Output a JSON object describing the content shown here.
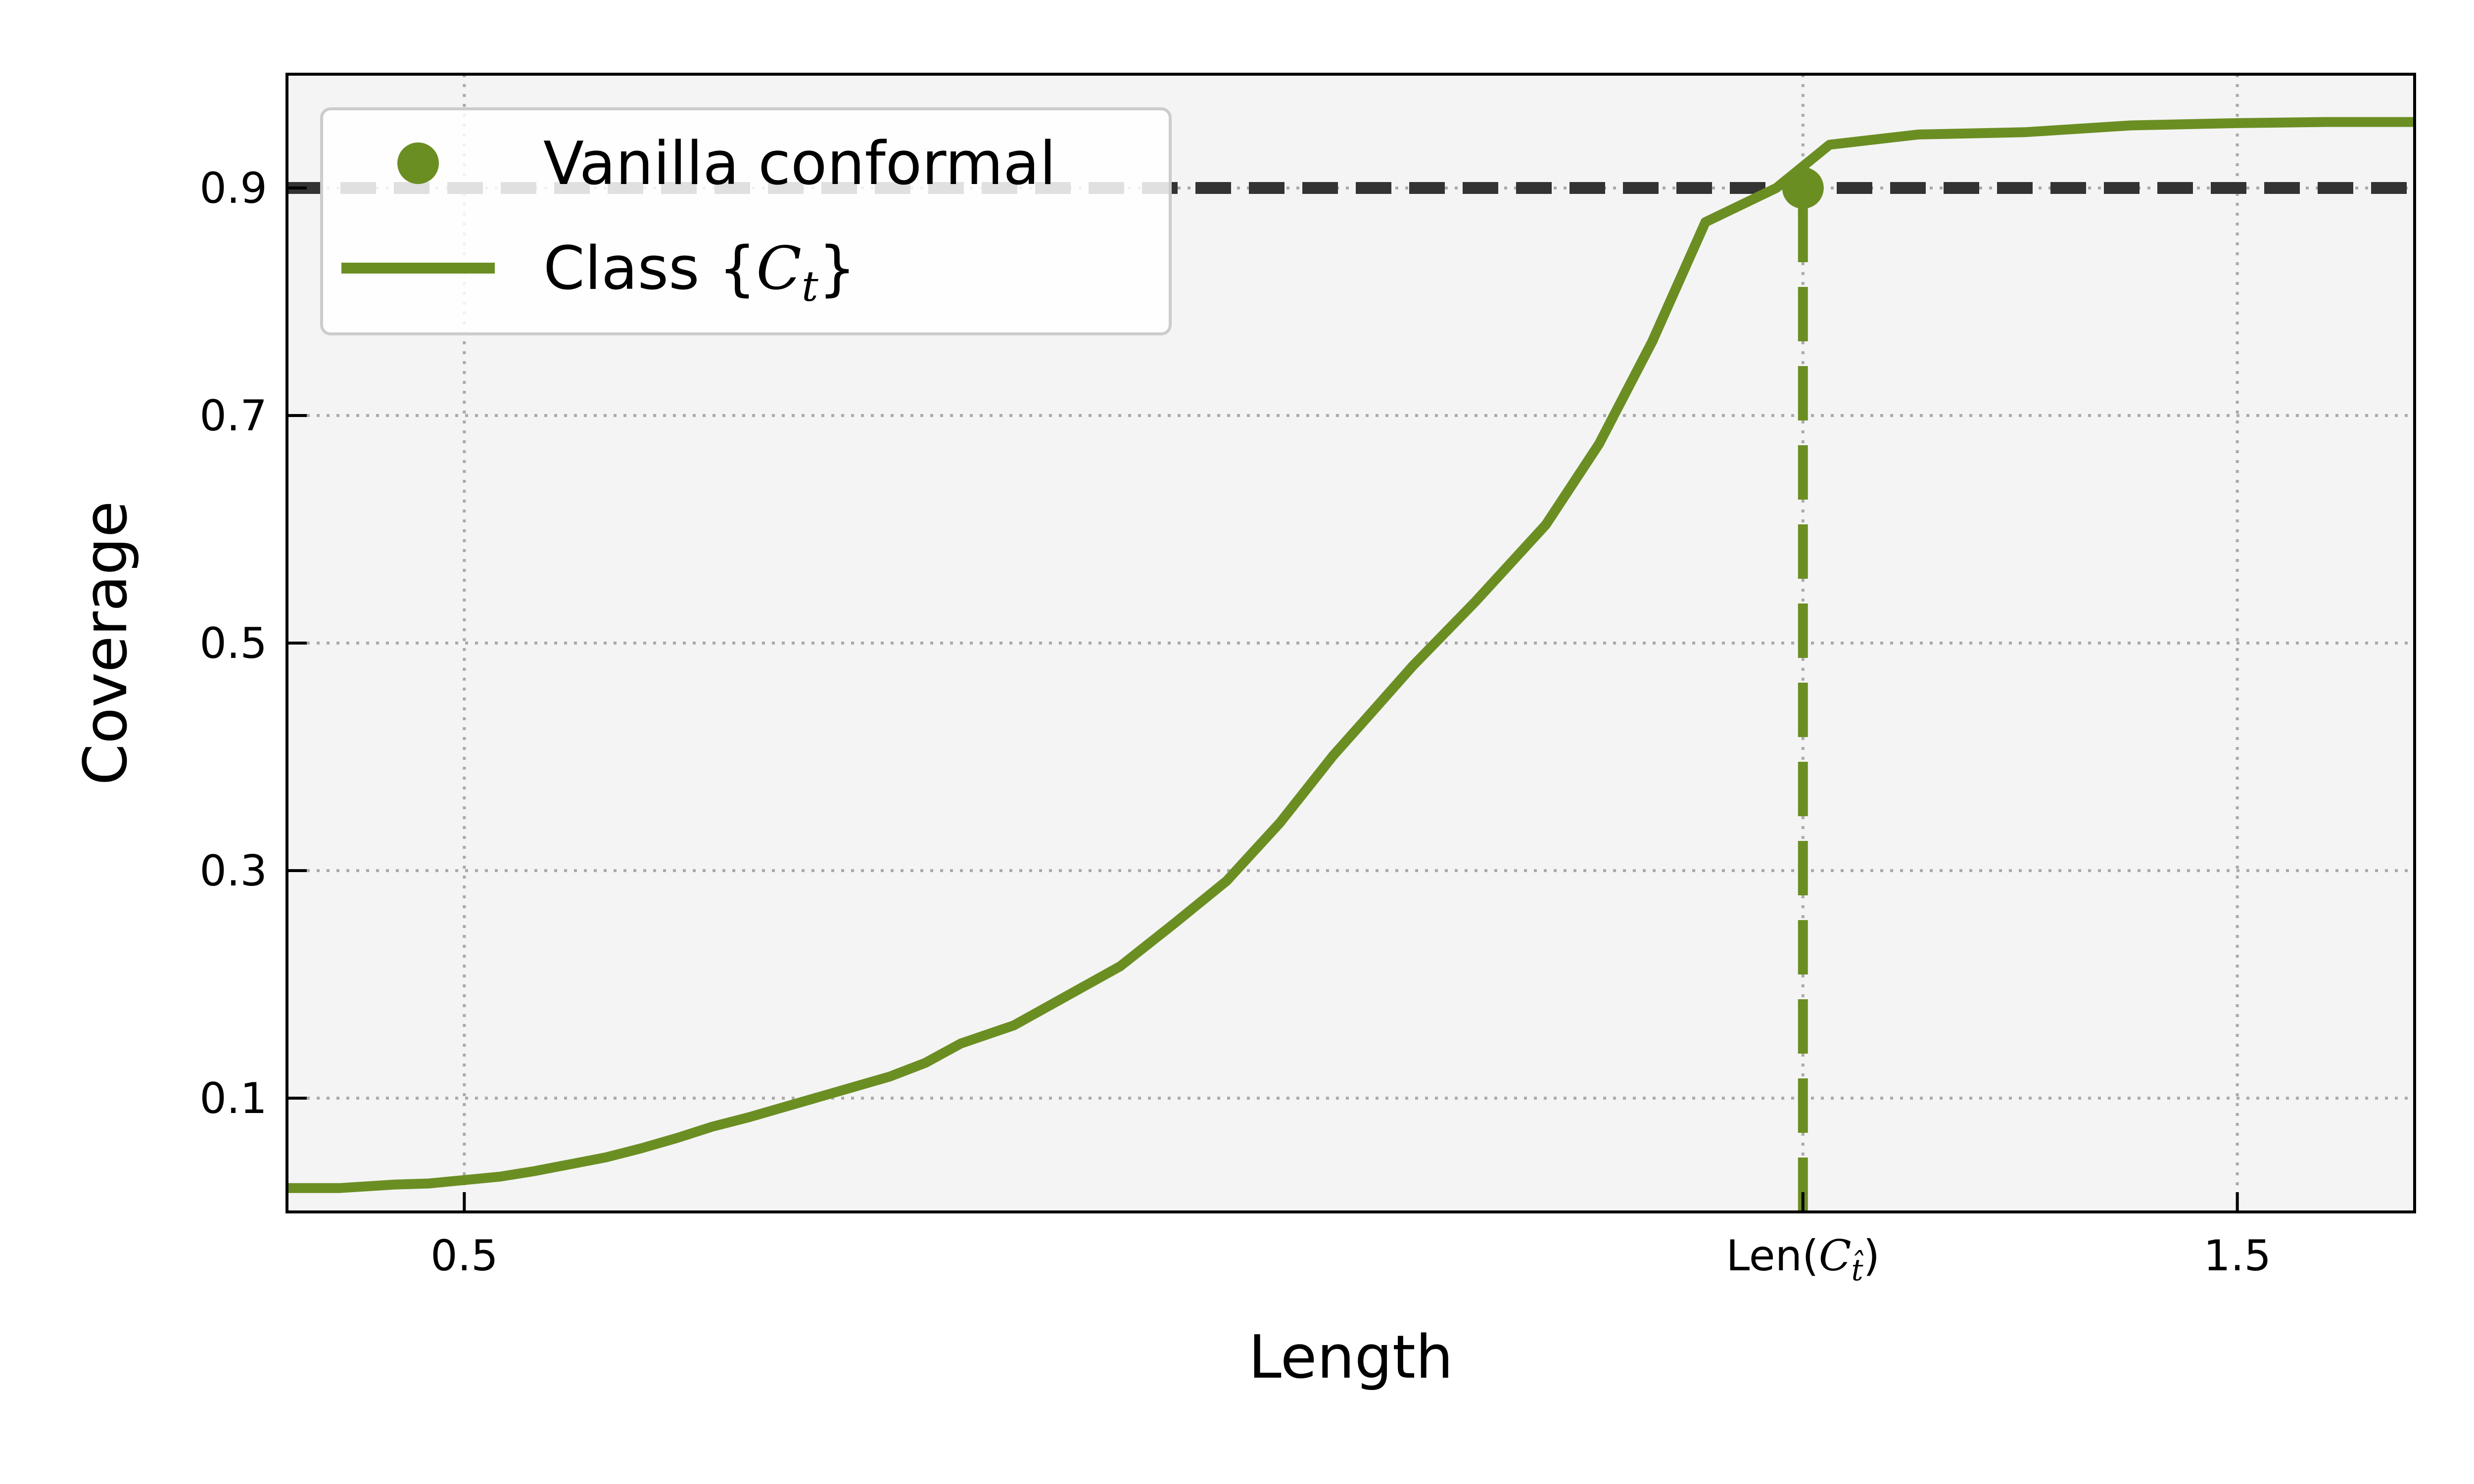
{
  "chart_data": {
    "type": "line",
    "title": "",
    "xlabel": "Length",
    "ylabel": "Coverage",
    "xlim": [
      0.4,
      1.6
    ],
    "ylim": [
      0.0,
      1.0
    ],
    "x_ticks": [
      {
        "value": 0.5,
        "label": "0.5"
      },
      {
        "value": 1.255,
        "label": "Len(C_t̂)",
        "label_prefix": "Len(",
        "label_math": "C",
        "label_sub": "t̂",
        "label_suffix": ")"
      },
      {
        "value": 1.5,
        "label": "1.5"
      }
    ],
    "y_ticks": [
      {
        "value": 0.1,
        "label": "0.1"
      },
      {
        "value": 0.3,
        "label": "0.3"
      },
      {
        "value": 0.5,
        "label": "0.5"
      },
      {
        "value": 0.7,
        "label": "0.7"
      },
      {
        "value": 0.9,
        "label": "0.9"
      }
    ],
    "grid": true,
    "legend_position": "top-left",
    "target_coverage": 0.9,
    "series": [
      {
        "name": "Class {C_t}",
        "legend_prefix": "Class {",
        "legend_math": "C",
        "legend_sub": "t",
        "legend_suffix": "}",
        "type": "line",
        "color": "#6b8e23",
        "x": [
          0.4,
          0.43,
          0.46,
          0.48,
          0.5,
          0.52,
          0.54,
          0.56,
          0.58,
          0.6,
          0.62,
          0.64,
          0.66,
          0.68,
          0.7,
          0.72,
          0.74,
          0.76,
          0.78,
          0.81,
          0.84,
          0.87,
          0.9,
          0.93,
          0.96,
          0.99,
          1.01,
          1.035,
          1.07,
          1.11,
          1.14,
          1.17,
          1.2,
          1.24,
          1.27,
          1.32,
          1.38,
          1.44,
          1.5,
          1.55,
          1.6
        ],
        "y": [
          0.021,
          0.021,
          0.024,
          0.025,
          0.028,
          0.031,
          0.036,
          0.042,
          0.048,
          0.056,
          0.065,
          0.075,
          0.083,
          0.092,
          0.101,
          0.11,
          0.119,
          0.131,
          0.148,
          0.164,
          0.19,
          0.216,
          0.253,
          0.291,
          0.342,
          0.401,
          0.436,
          0.48,
          0.536,
          0.604,
          0.675,
          0.765,
          0.87,
          0.9,
          0.938,
          0.947,
          0.949,
          0.955,
          0.957,
          0.958,
          0.958
        ]
      },
      {
        "name": "Vanilla conformal",
        "type": "scatter",
        "color": "#6b8e23",
        "x": [
          1.255
        ],
        "y": [
          0.9
        ]
      }
    ],
    "colors": {
      "background": "#f4f4f4",
      "grid": "#aaaaaa",
      "target_line": "#333333",
      "accent": "#6b8e23"
    }
  }
}
